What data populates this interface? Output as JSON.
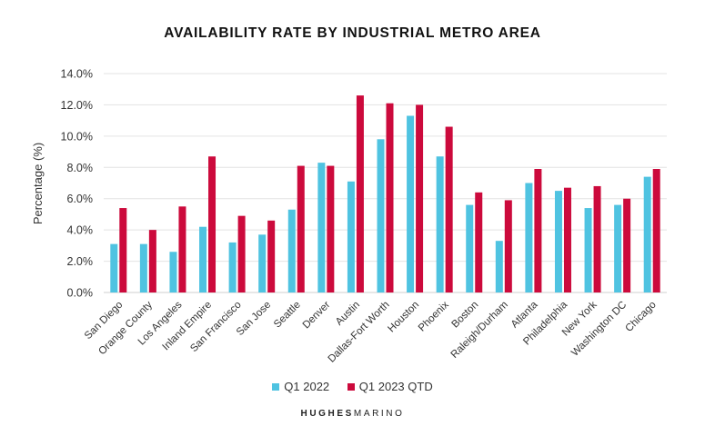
{
  "chart_data": {
    "type": "bar",
    "title": "AVAILABILITY RATE BY INDUSTRIAL METRO AREA",
    "xlabel": "",
    "ylabel": "Percentage (%)",
    "ylim": [
      0,
      14
    ],
    "yticks": [
      "0.0%",
      "2.0%",
      "4.0%",
      "6.0%",
      "8.0%",
      "10.0%",
      "12.0%",
      "14.0%"
    ],
    "grid": true,
    "legend_position": "bottom",
    "categories": [
      "San Diego",
      "Orange County",
      "Los Angeles",
      "Inland Empire",
      "San Francisco",
      "San Jose",
      "Seattle",
      "Denver",
      "Austin",
      "Dallas-Fort Worth",
      "Houston",
      "Phoenix",
      "Boston",
      "Raleigh/Durham",
      "Atlanta",
      "Philadelphia",
      "New York",
      "Washington DC",
      "Chicago"
    ],
    "series": [
      {
        "name": "Q1 2022",
        "color": "#4fc3e1",
        "values": [
          3.1,
          3.1,
          2.6,
          4.2,
          3.2,
          3.7,
          5.3,
          8.3,
          7.1,
          9.8,
          11.3,
          8.7,
          5.6,
          3.3,
          7.0,
          6.5,
          5.4,
          5.6,
          7.4
        ]
      },
      {
        "name": "Q1 2023 QTD",
        "color": "#cc0a3c",
        "values": [
          5.4,
          4.0,
          5.5,
          8.7,
          4.9,
          4.6,
          8.1,
          8.1,
          12.6,
          12.1,
          12.0,
          10.6,
          6.4,
          5.9,
          7.9,
          6.7,
          6.8,
          6.0,
          7.9
        ]
      }
    ]
  },
  "brand": {
    "part1": "HUGHES",
    "part2": "MARINO"
  }
}
